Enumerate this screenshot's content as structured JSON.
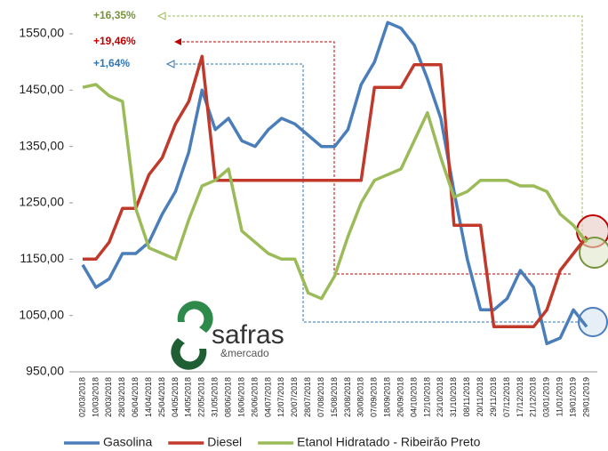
{
  "chart_data": {
    "type": "line",
    "categories": [
      "02/03/2018",
      "10/03/2018",
      "20/03/2018",
      "28/03/2018",
      "06/04/2018",
      "14/04/2018",
      "25/04/2018",
      "04/05/2018",
      "14/05/2018",
      "22/05/2018",
      "31/05/2018",
      "08/06/2018",
      "16/06/2018",
      "26/06/2018",
      "04/07/2018",
      "12/07/2018",
      "20/07/2018",
      "28/07/2018",
      "07/08/2018",
      "15/08/2018",
      "23/08/2018",
      "30/08/2018",
      "07/09/2018",
      "18/09/2018",
      "26/09/2018",
      "04/10/2018",
      "12/10/2018",
      "23/10/2018",
      "31/10/2018",
      "08/11/2018",
      "20/11/2018",
      "29/11/2018",
      "07/12/2018",
      "17/12/2018",
      "21/12/2018",
      "03/01/2019",
      "11/01/2019",
      "19/01/2019",
      "29/01/2019"
    ],
    "series": [
      {
        "name": "Gasolina",
        "color": "#4a7ebb",
        "values": [
          1140,
          1100,
          1115,
          1160,
          1160,
          1180,
          1230,
          1270,
          1340,
          1450,
          1380,
          1400,
          1360,
          1350,
          1380,
          1400,
          1390,
          1370,
          1350,
          1350,
          1380,
          1460,
          1500,
          1570,
          1560,
          1530,
          1470,
          1400,
          1270,
          1150,
          1060,
          1060,
          1080,
          1130,
          1100,
          1000,
          1010,
          1060,
          1030
        ]
      },
      {
        "name": "Diesel",
        "color": "#c0392b",
        "values": [
          1150,
          1150,
          1180,
          1240,
          1240,
          1300,
          1330,
          1390,
          1430,
          1510,
          1290,
          1290,
          1290,
          1290,
          1290,
          1290,
          1290,
          1290,
          1290,
          1290,
          1290,
          1290,
          1455,
          1455,
          1455,
          1495,
          1495,
          1495,
          1210,
          1210,
          1210,
          1030,
          1030,
          1030,
          1030,
          1060,
          1130,
          1160,
          1190
        ]
      },
      {
        "name": "Etanol Hidratado - Ribeirão Preto",
        "color": "#9bbb59",
        "values": [
          1455,
          1460,
          1440,
          1430,
          1240,
          1170,
          1160,
          1150,
          1220,
          1280,
          1290,
          1310,
          1200,
          1180,
          1160,
          1150,
          1150,
          1090,
          1080,
          1120,
          1190,
          1250,
          1290,
          1300,
          1310,
          1360,
          1410,
          1330,
          1260,
          1270,
          1290,
          1290,
          1290,
          1280,
          1280,
          1270,
          1230,
          1210,
          1180
        ]
      }
    ],
    "ylim": [
      950,
      1550
    ],
    "yticks": [
      {
        "value": 950,
        "label": "950,00"
      },
      {
        "value": 1050,
        "label": "1050,00"
      },
      {
        "value": 1150,
        "label": "1150,00"
      },
      {
        "value": 1250,
        "label": "1250,00"
      },
      {
        "value": 1350,
        "label": "1350,00"
      },
      {
        "value": 1450,
        "label": "1450,00"
      },
      {
        "value": 1550,
        "label": "1550,00"
      }
    ],
    "annotations": [
      {
        "text": "+16,35%",
        "color": "#77933c"
      },
      {
        "text": "+19,46%",
        "color": "#c00000"
      },
      {
        "text": "+1,64%",
        "color": "#2e75b6"
      }
    ],
    "logo": {
      "name": "safras",
      "sub": "&mercado"
    }
  }
}
